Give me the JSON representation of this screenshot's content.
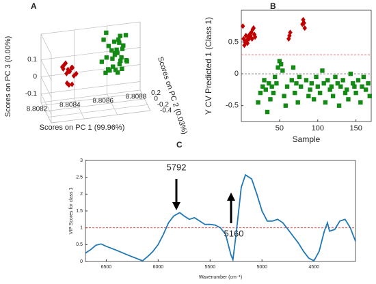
{
  "chart_data": [
    {
      "type": "scatter3d",
      "panel_label": "A",
      "xlabel": "Scores on PC 1 (99.96%)",
      "ylabel": "Scores on PC 2 (0.03%)",
      "zlabel": "Scores on PC 3 (0.00%)",
      "xlim": [
        8.8082,
        8.8088
      ],
      "xticks": [
        8.8082,
        8.8084,
        8.8086,
        8.8088
      ],
      "ylim": [
        -0.4,
        0.3
      ],
      "yticks": [
        -0.4,
        -0.2,
        0,
        0.2
      ],
      "zlim": [
        -0.15,
        0.25
      ],
      "zticks": [
        -0.1,
        0,
        0.1
      ],
      "series": [
        {
          "color": "#c00000",
          "marker": "diamond",
          "x": [
            8.80832,
            8.80833,
            8.80834,
            8.80835,
            8.80836,
            8.80837,
            8.80838,
            8.80839,
            8.8084,
            8.80834,
            8.80836,
            8.80838,
            8.80833,
            8.80837,
            8.80835,
            8.80839
          ],
          "y": [
            0.2,
            0.25,
            0.2,
            0.15,
            0.2,
            0.25,
            0.2,
            0.2,
            0.15,
            0.1,
            0.2,
            0.25,
            0.2,
            0.1,
            0.25,
            0.3
          ],
          "z": [
            0.06,
            0.04,
            0.08,
            0.05,
            0.03,
            0.02,
            0.05,
            0.0,
            0.02,
            -0.02,
            -0.05,
            0.04,
            0.07,
            -0.03,
            0.01,
            0.03
          ]
        },
        {
          "color": "#138a13",
          "marker": "square",
          "x": [
            8.80855,
            8.80857,
            8.80858,
            8.8086,
            8.80861,
            8.80862,
            8.80863,
            8.80864,
            8.80865,
            8.80866,
            8.80867,
            8.80868,
            8.80856,
            8.80859,
            8.80862,
            8.80864,
            8.80866,
            8.80869,
            8.80857,
            8.8086,
            8.80863,
            8.80865,
            8.80867,
            8.8087,
            8.80858,
            8.80861,
            8.80864,
            8.80866,
            8.80868,
            8.80862
          ],
          "y": [
            0.1,
            0.0,
            -0.1,
            0.2,
            0.05,
            -0.05,
            0.15,
            0.1,
            -0.15,
            0.0,
            0.2,
            0.1,
            -0.05,
            0.25,
            -0.2,
            0.05,
            0.15,
            0.0,
            0.2,
            -0.1,
            0.1,
            -0.05,
            0.05,
            0.15,
            0.0,
            0.1,
            -0.1,
            0.2,
            -0.15,
            0.0
          ],
          "z": [
            0.08,
            0.12,
            0.06,
            0.15,
            0.1,
            0.05,
            0.18,
            0.14,
            0.07,
            0.11,
            0.2,
            0.16,
            0.04,
            0.22,
            0.06,
            0.13,
            0.17,
            0.09,
            0.19,
            0.08,
            0.12,
            0.1,
            0.15,
            0.21,
            0.05,
            0.14,
            0.09,
            0.18,
            0.11,
            0.13
          ]
        }
      ]
    },
    {
      "type": "scatter",
      "panel_label": "B",
      "xlabel": "Sample",
      "ylabel": "Y CV Predicted 1 (Class 1)",
      "xlim": [
        0,
        170
      ],
      "xticks": [
        50,
        100,
        150
      ],
      "ylim": [
        -0.75,
        1.0
      ],
      "yticks": [
        -0.5,
        0,
        0.5
      ],
      "threshold": 0.3,
      "threshold_color": "#e06060",
      "series": [
        {
          "color": "#c00000",
          "marker": "diamond",
          "x": [
            2,
            3,
            4,
            5,
            6,
            7,
            8,
            9,
            10,
            11,
            12,
            13,
            14,
            15,
            16,
            17,
            18,
            62,
            63,
            64,
            80,
            81,
            82,
            83
          ],
          "y": [
            0.75,
            0.55,
            0.45,
            0.5,
            0.6,
            0.52,
            0.48,
            0.58,
            0.55,
            0.62,
            0.6,
            0.65,
            0.55,
            0.7,
            0.72,
            0.62,
            0.58,
            0.55,
            0.6,
            0.65,
            0.78,
            0.85,
            0.8,
            0.72
          ]
        },
        {
          "color": "#138a13",
          "marker": "square",
          "x": [
            22,
            25,
            28,
            30,
            32,
            34,
            36,
            38,
            40,
            42,
            44,
            46,
            48,
            50,
            52,
            54,
            56,
            58,
            60,
            66,
            68,
            70,
            72,
            74,
            76,
            78,
            85,
            88,
            90,
            92,
            95,
            98,
            100,
            103,
            106,
            108,
            110,
            113,
            116,
            118,
            120,
            123,
            126,
            128,
            130,
            133,
            136,
            138,
            140,
            143,
            146,
            148,
            150,
            153,
            156,
            158,
            160,
            163,
            166,
            168
          ],
          "y": [
            -0.45,
            -0.3,
            -0.2,
            -0.1,
            -0.25,
            -0.6,
            -0.15,
            -0.4,
            -0.2,
            -0.3,
            -0.05,
            -0.15,
            0.1,
            0.2,
            0.15,
            0.05,
            -0.35,
            -0.5,
            -0.2,
            -0.1,
            0.1,
            -0.3,
            -0.15,
            -0.45,
            -0.05,
            -0.2,
            -0.1,
            -0.35,
            -0.25,
            -0.15,
            -0.4,
            -0.05,
            -0.2,
            -0.3,
            0.05,
            -0.15,
            -0.45,
            -0.1,
            -0.25,
            -0.2,
            -0.35,
            -0.05,
            -0.15,
            -0.5,
            -0.2,
            -0.1,
            -0.3,
            -0.25,
            -0.4,
            0.0,
            -0.15,
            -0.2,
            -0.3,
            -0.1,
            -0.45,
            -0.2,
            -0.05,
            -0.25,
            -0.15,
            -0.35
          ]
        }
      ]
    },
    {
      "type": "line",
      "panel_label": "C",
      "xlabel": "Wavenumber (cm⁻¹)",
      "ylabel": "VIP Scores for class 1",
      "xlim": [
        6700,
        4100
      ],
      "xticks": [
        6500,
        6000,
        5500,
        5000,
        4500
      ],
      "ylim": [
        0,
        3
      ],
      "yticks": [
        0,
        0.5,
        1,
        1.5,
        2,
        2.5,
        3
      ],
      "threshold": 1,
      "threshold_color": "#e03030",
      "color": "#1f77b4",
      "annotations": [
        {
          "text": "5792"
        },
        {
          "text": "5160"
        }
      ],
      "x": [
        6700,
        6650,
        6600,
        6550,
        6500,
        6400,
        6300,
        6200,
        6150,
        6100,
        6050,
        6000,
        5950,
        5900,
        5850,
        5792,
        5750,
        5700,
        5650,
        5600,
        5550,
        5500,
        5450,
        5400,
        5350,
        5300,
        5280,
        5250,
        5200,
        5160,
        5100,
        5050,
        5000,
        4950,
        4900,
        4850,
        4800,
        4750,
        4700,
        4650,
        4600,
        4550,
        4500,
        4450,
        4400,
        4370,
        4350,
        4300,
        4250,
        4200,
        4150,
        4100
      ],
      "values": [
        0.25,
        0.35,
        0.48,
        0.52,
        0.45,
        0.33,
        0.2,
        0.08,
        0.02,
        0.15,
        0.3,
        0.5,
        0.8,
        1.15,
        1.35,
        1.45,
        1.35,
        1.25,
        1.3,
        1.2,
        1.1,
        1.1,
        1.08,
        1.0,
        0.8,
        0.2,
        0.05,
        0.8,
        2.2,
        2.57,
        2.45,
        2.0,
        1.5,
        1.2,
        1.2,
        1.25,
        1.15,
        0.95,
        0.75,
        0.55,
        0.3,
        0.1,
        0.02,
        0.3,
        0.9,
        1.15,
        0.9,
        0.95,
        1.2,
        1.25,
        1.0,
        0.6
      ]
    }
  ]
}
